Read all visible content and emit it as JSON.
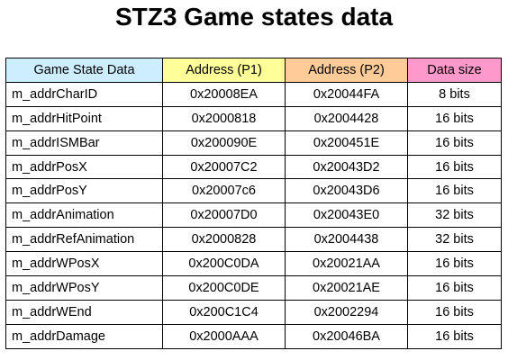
{
  "title": "STZ3 Game states data",
  "colors": {
    "header_col1": "#cceeff",
    "header_col2": "#ffff99",
    "header_col3": "#ffcc99",
    "header_col4": "#ff99cc",
    "border": "#000000",
    "background": "#ffffff"
  },
  "table": {
    "headers": [
      "Game State Data",
      "Address (P1)",
      "Address (P2)",
      "Data size"
    ],
    "rows": [
      [
        "m_addrCharID",
        "0x20008EA",
        "0x20044FA",
        "8 bits"
      ],
      [
        "m_addrHitPoint",
        "0x2000818",
        "0x2004428",
        "16 bits"
      ],
      [
        "m_addrISMBar",
        "0x200090E",
        "0x200451E",
        "16 bits"
      ],
      [
        "m_addrPosX",
        "0x20007C2",
        "0x20043D2",
        "16 bits"
      ],
      [
        "m_addrPosY",
        "0x20007c6",
        "0x20043D6",
        "16 bits"
      ],
      [
        "m_addrAnimation",
        "0x20007D0",
        "0x20043E0",
        "32 bits"
      ],
      [
        "m_addrRefAnimation",
        "0x2000828",
        "0x2004438",
        "32 bits"
      ],
      [
        "m_addrWPosX",
        "0x200C0DA",
        "0x20021AA",
        "16 bits"
      ],
      [
        "m_addrWPosY",
        "0x200C0DE",
        "0x20021AE",
        "16 bits"
      ],
      [
        "m_addrWEnd",
        "0x200C1C4",
        "0x2002294",
        "16 bits"
      ],
      [
        "m_addrDamage",
        "0x2000AAA",
        "0x20046BA",
        "16 bits"
      ]
    ]
  }
}
